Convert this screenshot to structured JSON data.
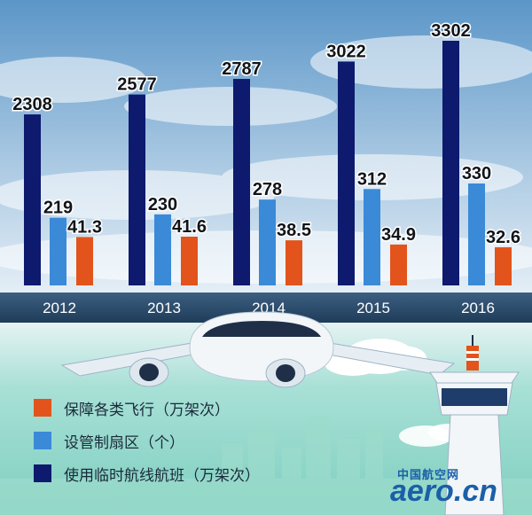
{
  "colors": {
    "navy": "#0d1a6e",
    "blue": "#3a8ad8",
    "orange": "#e2541b",
    "band": "#2a4a6a",
    "sky_top": "#5b96c8",
    "sky_bottom": "#e4eef6",
    "ground": "#8fd6c8"
  },
  "legend": {
    "items": [
      {
        "label": "保障各类飞行（万架次）",
        "color": "#e2541b",
        "series": "orange"
      },
      {
        "label": "设管制扇区（个）",
        "color": "#3a8ad8",
        "series": "blue"
      },
      {
        "label": "使用临时航线航班（万架次）",
        "color": "#0d1a6e",
        "series": "navy"
      }
    ]
  },
  "watermark": {
    "cn": "中国航空网",
    "logo": "aero.cn"
  },
  "chart_data": {
    "type": "bar",
    "title": "",
    "xlabel": "",
    "ylabel": "",
    "categories": [
      "2012",
      "2013",
      "2014",
      "2015",
      "2016"
    ],
    "series": [
      {
        "name": "使用临时航线航班（万架次）",
        "color": "#0d1a6e",
        "values": [
          2308,
          2577,
          2787,
          3022,
          3302
        ],
        "labels": [
          "2308",
          "2577",
          "2787",
          "3022",
          "3302"
        ]
      },
      {
        "name": "设管制扇区（个）",
        "color": "#3a8ad8",
        "values": [
          219,
          230,
          278,
          312,
          330
        ],
        "labels": [
          "219",
          "230",
          "278",
          "312",
          "330"
        ]
      },
      {
        "name": "保障各类飞行（万架次）",
        "color": "#e2541b",
        "values": [
          41.3,
          41.6,
          38.5,
          34.9,
          32.6
        ],
        "labels": [
          "41.3",
          "41.6",
          "38.5",
          "34.9",
          "32.6"
        ]
      }
    ],
    "ylim": [
      0,
      3302
    ],
    "grid": false,
    "legend_position": "bottom-left"
  }
}
